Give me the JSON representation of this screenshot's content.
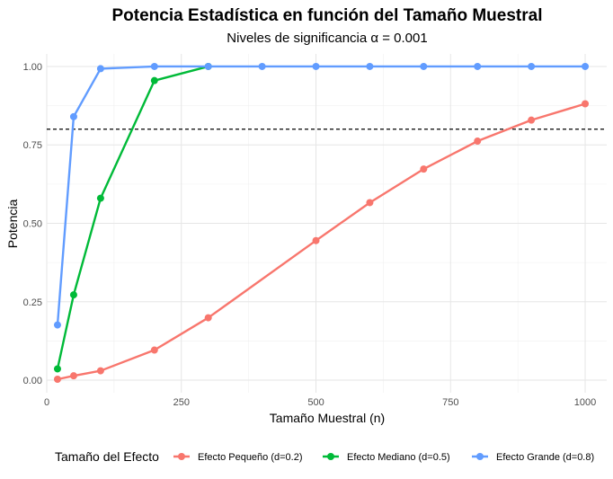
{
  "chart_data": {
    "type": "line",
    "title": "Potencia Estadística en función del Tamaño Muestral",
    "subtitle": "Niveles de significancia α = 0.001",
    "xlabel": "Tamaño Muestral (n)",
    "ylabel": "Potencia",
    "xlim": [
      0,
      1040
    ],
    "ylim": [
      -0.04,
      1.04
    ],
    "x_ticks": [
      0,
      250,
      500,
      750,
      1000
    ],
    "x_tick_labels": [
      "0",
      "250",
      "500",
      "750",
      "1000"
    ],
    "y_ticks": [
      0,
      0.25,
      0.5,
      0.75,
      1.0
    ],
    "y_tick_labels": [
      "0.00",
      "0.25",
      "0.50",
      "0.75",
      "1.00"
    ],
    "reference_line": {
      "y": 0.8,
      "style": "dashed",
      "color": "#000000"
    },
    "grid": true,
    "legend": {
      "title": "Tamaño del Efecto",
      "position": "bottom"
    },
    "series": [
      {
        "name": "Efecto Pequeño (d=0.2)",
        "color": "#F8766D",
        "x": [
          20,
          50,
          100,
          200,
          300,
          500,
          600,
          700,
          800,
          900,
          1000
        ],
        "y": [
          0.003,
          0.014,
          0.03,
          0.096,
          0.199,
          0.445,
          0.566,
          0.673,
          0.762,
          0.829,
          0.881
        ]
      },
      {
        "name": "Efecto Mediano (d=0.5)",
        "color": "#00BA38",
        "x": [
          20,
          50,
          100,
          200,
          300
        ],
        "y": [
          0.036,
          0.272,
          0.58,
          0.955,
          1.0
        ]
      },
      {
        "name": "Efecto Grande (d=0.8)",
        "color": "#619CFF",
        "x": [
          20,
          50,
          100,
          200,
          300,
          400,
          500,
          600,
          700,
          800,
          900,
          1000
        ],
        "y": [
          0.176,
          0.84,
          0.993,
          1.0,
          1.0,
          1.0,
          1.0,
          1.0,
          1.0,
          1.0,
          1.0,
          1.0
        ]
      }
    ]
  }
}
